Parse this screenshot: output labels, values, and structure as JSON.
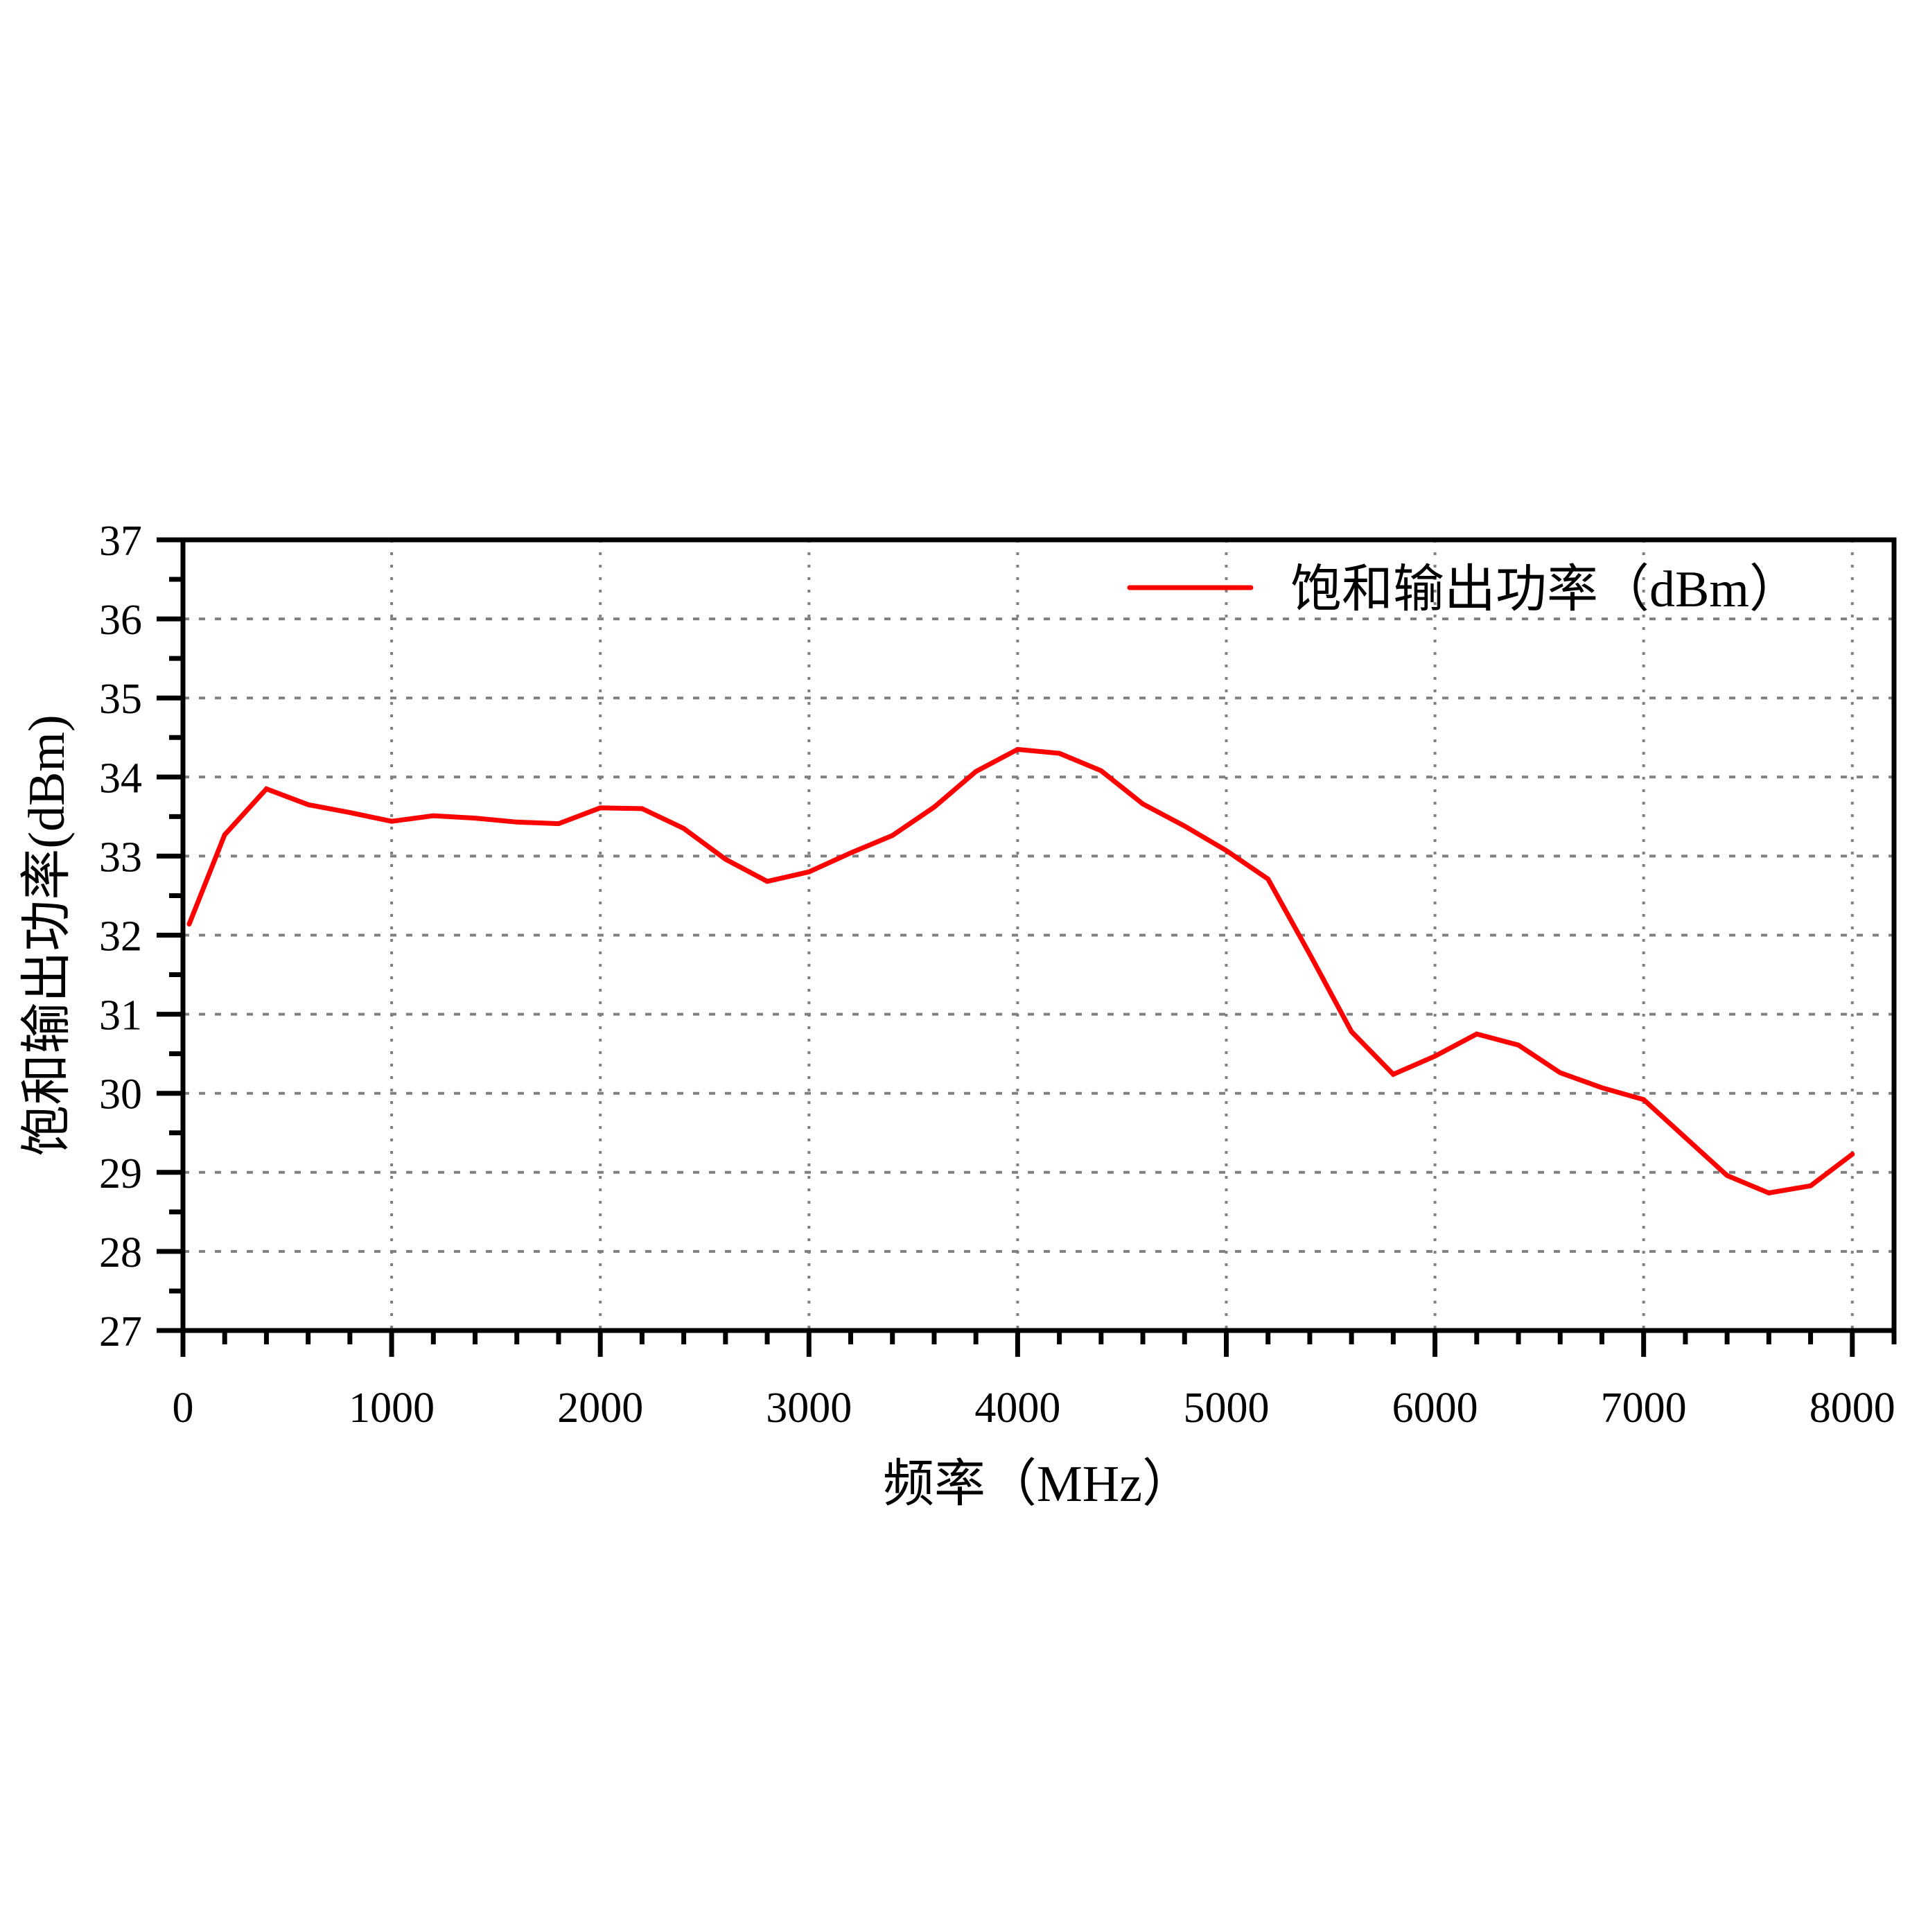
{
  "chart_data": {
    "type": "line",
    "title": "",
    "xlabel": "频率（MHz）",
    "ylabel": "饱和输出功率(dBm)",
    "xlim": [
      0,
      8200
    ],
    "ylim": [
      27,
      37
    ],
    "x_ticks": [
      0,
      1000,
      2000,
      3000,
      4000,
      5000,
      6000,
      7000,
      8000
    ],
    "x_minor_step": 200,
    "y_ticks": [
      27,
      28,
      29,
      30,
      31,
      32,
      33,
      34,
      35,
      36,
      37
    ],
    "y_minor_step": 0.5,
    "grid": true,
    "legend_position": "upper right",
    "series": [
      {
        "name": "饱和输出功率（dBm）",
        "color": "#ff0000",
        "x": [
          30,
          200,
          400,
          600,
          800,
          1000,
          1200,
          1400,
          1600,
          1800,
          2000,
          2200,
          2400,
          2600,
          2800,
          3000,
          3200,
          3400,
          3600,
          3800,
          4000,
          4200,
          4400,
          4600,
          4800,
          5000,
          5200,
          5400,
          5600,
          5800,
          6000,
          6200,
          6400,
          6600,
          6800,
          7000,
          7200,
          7400,
          7600,
          7800,
          8000
        ],
        "values": [
          32.14,
          33.27,
          33.85,
          33.65,
          33.55,
          33.44,
          33.51,
          33.48,
          33.43,
          33.41,
          33.61,
          33.6,
          33.35,
          32.96,
          32.68,
          32.8,
          33.04,
          33.26,
          33.62,
          34.07,
          34.35,
          34.3,
          34.08,
          33.66,
          33.38,
          33.07,
          32.71,
          31.76,
          30.78,
          30.24,
          30.47,
          30.75,
          30.61,
          30.26,
          30.07,
          29.92,
          29.44,
          28.96,
          28.74,
          28.83,
          29.23
        ]
      }
    ]
  },
  "axes": {
    "x_title": "频率（MHz）",
    "y_title": "饱和输出功率(dBm)"
  },
  "legend": {
    "label": "饱和输出功率（dBm）",
    "line_color": "#ff0000"
  },
  "colors": {
    "axis": "#000000",
    "grid": "#808080",
    "series": "#ff0000"
  }
}
